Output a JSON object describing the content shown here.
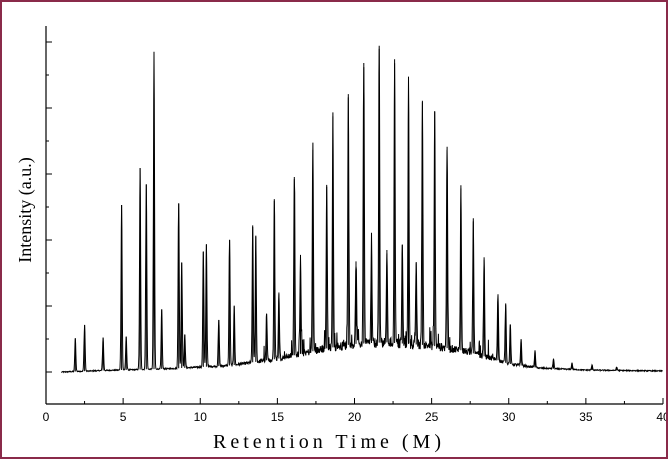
{
  "chart_data": {
    "type": "line",
    "title": "",
    "xlabel": "Retention Time (M)",
    "ylabel": "Intensity (a.u.)",
    "xlim": [
      0,
      40
    ],
    "ylim": [
      0,
      100
    ],
    "x_ticks": [
      0,
      5,
      10,
      15,
      20,
      25,
      30,
      35,
      40
    ],
    "x_tick_labels": [
      "0",
      "5",
      "10",
      "15",
      "20",
      "25",
      "30",
      "35",
      "40"
    ],
    "y_tick_labels_shown": false,
    "grid": false,
    "legend": "none",
    "line_color": "#000000",
    "baseline": [
      [
        1.0,
        0.0
      ],
      [
        4.0,
        0.5
      ],
      [
        8.0,
        1.0
      ],
      [
        12.0,
        2.0
      ],
      [
        15.0,
        4.0
      ],
      [
        18.0,
        7.0
      ],
      [
        20.0,
        8.5
      ],
      [
        22.0,
        9.0
      ],
      [
        25.0,
        8.0
      ],
      [
        27.0,
        6.5
      ],
      [
        29.0,
        4.0
      ],
      [
        30.0,
        2.5
      ],
      [
        32.0,
        1.2
      ],
      [
        35.0,
        0.6
      ],
      [
        40.0,
        0.3
      ]
    ],
    "peaks": [
      [
        1.9,
        10
      ],
      [
        2.5,
        14
      ],
      [
        3.7,
        10
      ],
      [
        4.9,
        50
      ],
      [
        5.2,
        10
      ],
      [
        6.1,
        61
      ],
      [
        6.5,
        56
      ],
      [
        7.0,
        96
      ],
      [
        7.5,
        18
      ],
      [
        8.6,
        50
      ],
      [
        8.8,
        32
      ],
      [
        9.0,
        10
      ],
      [
        10.2,
        35
      ],
      [
        10.4,
        37
      ],
      [
        11.2,
        14
      ],
      [
        11.9,
        38
      ],
      [
        12.2,
        18
      ],
      [
        13.4,
        41
      ],
      [
        13.6,
        38
      ],
      [
        14.3,
        14
      ],
      [
        14.8,
        48
      ],
      [
        15.1,
        20
      ],
      [
        16.1,
        54
      ],
      [
        16.5,
        30
      ],
      [
        17.3,
        61
      ],
      [
        18.2,
        49
      ],
      [
        18.6,
        70
      ],
      [
        19.6,
        76
      ],
      [
        20.1,
        25
      ],
      [
        20.6,
        85
      ],
      [
        21.1,
        30
      ],
      [
        21.6,
        89
      ],
      [
        22.1,
        28
      ],
      [
        22.6,
        86
      ],
      [
        23.1,
        30
      ],
      [
        23.5,
        81
      ],
      [
        24.0,
        25
      ],
      [
        24.4,
        74
      ],
      [
        25.2,
        71
      ],
      [
        26.0,
        61
      ],
      [
        26.9,
        50
      ],
      [
        27.7,
        40
      ],
      [
        28.4,
        30
      ],
      [
        29.3,
        20
      ],
      [
        29.8,
        18
      ],
      [
        30.1,
        12
      ],
      [
        30.8,
        8
      ],
      [
        31.7,
        5
      ],
      [
        32.9,
        3
      ],
      [
        34.1,
        2
      ],
      [
        35.4,
        1.5
      ],
      [
        37.0,
        1
      ]
    ]
  }
}
